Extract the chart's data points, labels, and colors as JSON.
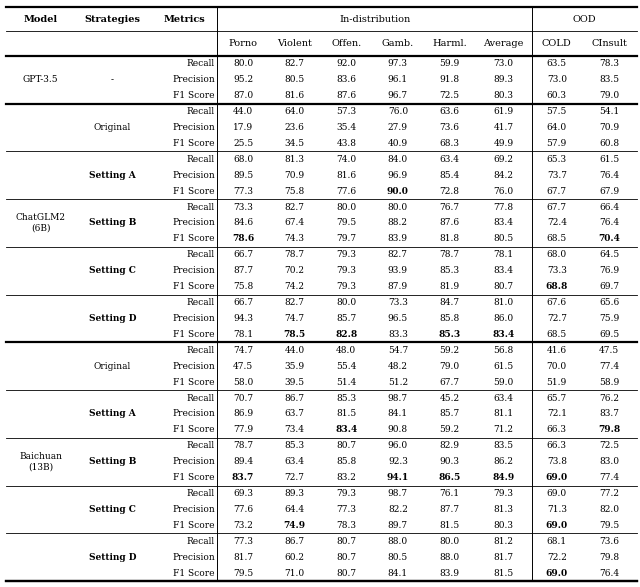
{
  "figsize": [
    6.4,
    5.87
  ],
  "dpi": 100,
  "header_fs": 7.0,
  "data_fs": 6.5,
  "rows": [
    [
      "GPT-3.5",
      "-",
      "Recall",
      "80.0",
      "82.7",
      "92.0",
      "97.3",
      "59.9",
      "73.0",
      "63.5",
      "78.3"
    ],
    [
      "",
      "",
      "Precision",
      "95.2",
      "80.5",
      "83.6",
      "96.1",
      "91.8",
      "89.3",
      "73.0",
      "83.5"
    ],
    [
      "",
      "",
      "F1 Score",
      "87.0",
      "81.6",
      "87.6",
      "96.7",
      "72.5",
      "80.3",
      "60.3",
      "79.0"
    ],
    [
      "ChatGLM2\n(6B)",
      "Original",
      "Recall",
      "44.0",
      "64.0",
      "57.3",
      "76.0",
      "63.6",
      "61.9",
      "57.5",
      "54.1"
    ],
    [
      "",
      "",
      "Precision",
      "17.9",
      "23.6",
      "35.4",
      "27.9",
      "73.6",
      "41.7",
      "64.0",
      "70.9"
    ],
    [
      "",
      "",
      "F1 Score",
      "25.5",
      "34.5",
      "43.8",
      "40.9",
      "68.3",
      "49.9",
      "57.9",
      "60.8"
    ],
    [
      "",
      "Setting A",
      "Recall",
      "68.0",
      "81.3",
      "74.0",
      "84.0",
      "63.4",
      "69.2",
      "65.3",
      "61.5"
    ],
    [
      "",
      "",
      "Precision",
      "89.5",
      "70.9",
      "81.6",
      "96.9",
      "85.4",
      "84.2",
      "73.7",
      "76.4"
    ],
    [
      "",
      "",
      "F1 Score",
      "77.3",
      "75.8",
      "77.6",
      "**90.0**",
      "72.8",
      "76.0",
      "67.7",
      "67.9"
    ],
    [
      "",
      "Setting B",
      "Recall",
      "73.3",
      "82.7",
      "80.0",
      "80.0",
      "76.7",
      "77.8",
      "67.7",
      "66.4"
    ],
    [
      "",
      "",
      "Precision",
      "84.6",
      "67.4",
      "79.5",
      "88.2",
      "87.6",
      "83.4",
      "72.4",
      "76.4"
    ],
    [
      "",
      "",
      "F1 Score",
      "**78.6**",
      "74.3",
      "79.7",
      "83.9",
      "81.8",
      "80.5",
      "68.5",
      "**70.4**"
    ],
    [
      "",
      "Setting C",
      "Recall",
      "66.7",
      "78.7",
      "79.3",
      "82.7",
      "78.7",
      "78.1",
      "68.0",
      "64.5"
    ],
    [
      "",
      "",
      "Precision",
      "87.7",
      "70.2",
      "79.3",
      "93.9",
      "85.3",
      "83.4",
      "73.3",
      "76.9"
    ],
    [
      "",
      "",
      "F1 Score",
      "75.8",
      "74.2",
      "79.3",
      "87.9",
      "81.9",
      "80.7",
      "**68.8**",
      "69.7"
    ],
    [
      "",
      "Setting D",
      "Recall",
      "66.7",
      "82.7",
      "80.0",
      "73.3",
      "84.7",
      "81.0",
      "67.6",
      "65.6"
    ],
    [
      "",
      "",
      "Precision",
      "94.3",
      "74.7",
      "85.7",
      "96.5",
      "85.8",
      "86.0",
      "72.7",
      "75.9"
    ],
    [
      "",
      "",
      "F1 Score",
      "78.1",
      "**78.5**",
      "**82.8**",
      "83.3",
      "**85.3**",
      "**83.4**",
      "68.5",
      "69.5"
    ],
    [
      "Baichuan\n(13B)",
      "Original",
      "Recall",
      "74.7",
      "44.0",
      "48.0",
      "54.7",
      "59.2",
      "56.8",
      "41.6",
      "47.5"
    ],
    [
      "",
      "",
      "Precision",
      "47.5",
      "35.9",
      "55.4",
      "48.2",
      "79.0",
      "61.5",
      "70.0",
      "77.4"
    ],
    [
      "",
      "",
      "F1 Score",
      "58.0",
      "39.5",
      "51.4",
      "51.2",
      "67.7",
      "59.0",
      "51.9",
      "58.9"
    ],
    [
      "",
      "Setting A",
      "Recall",
      "70.7",
      "86.7",
      "85.3",
      "98.7",
      "45.2",
      "63.4",
      "65.7",
      "76.2"
    ],
    [
      "",
      "",
      "Precision",
      "86.9",
      "63.7",
      "81.5",
      "84.1",
      "85.7",
      "81.1",
      "72.1",
      "83.7"
    ],
    [
      "",
      "",
      "F1 Score",
      "77.9",
      "73.4",
      "**83.4**",
      "90.8",
      "59.2",
      "71.2",
      "66.3",
      "**79.8**"
    ],
    [
      "",
      "Setting B",
      "Recall",
      "78.7",
      "85.3",
      "80.7",
      "96.0",
      "82.9",
      "83.5",
      "66.3",
      "72.5"
    ],
    [
      "",
      "",
      "Precision",
      "89.4",
      "63.4",
      "85.8",
      "92.3",
      "90.3",
      "86.2",
      "73.8",
      "83.0"
    ],
    [
      "",
      "",
      "F1 Score",
      "**83.7**",
      "72.7",
      "83.2",
      "**94.1**",
      "**86.5**",
      "**84.9**",
      "**69.0**",
      "77.4"
    ],
    [
      "",
      "Setting C",
      "Recall",
      "69.3",
      "89.3",
      "79.3",
      "98.7",
      "76.1",
      "79.3",
      "69.0",
      "77.2"
    ],
    [
      "",
      "",
      "Precision",
      "77.6",
      "64.4",
      "77.3",
      "82.2",
      "87.7",
      "81.3",
      "71.3",
      "82.0"
    ],
    [
      "",
      "",
      "F1 Score",
      "73.2",
      "**74.9**",
      "78.3",
      "89.7",
      "81.5",
      "80.3",
      "**69.0**",
      "79.5"
    ],
    [
      "",
      "Setting D",
      "Recall",
      "77.3",
      "86.7",
      "80.7",
      "88.0",
      "80.0",
      "81.2",
      "68.1",
      "73.6"
    ],
    [
      "",
      "",
      "Precision",
      "81.7",
      "60.2",
      "80.7",
      "80.5",
      "88.0",
      "81.7",
      "72.2",
      "79.8"
    ],
    [
      "",
      "",
      "F1 Score",
      "79.5",
      "71.0",
      "80.7",
      "84.1",
      "83.9",
      "81.5",
      "**69.0**",
      "76.4"
    ]
  ],
  "model_groups": [
    {
      "label": "GPT-3.5",
      "start": 0,
      "end": 2
    },
    {
      "label": "ChatGLM2\n(6B)",
      "start": 3,
      "end": 17
    },
    {
      "label": "Baichuan\n(13B)",
      "start": 18,
      "end": 32
    }
  ],
  "strategy_groups": [
    {
      "label": "-",
      "start": 0,
      "end": 2,
      "bold": false
    },
    {
      "label": "Original",
      "start": 3,
      "end": 5,
      "bold": false
    },
    {
      "label": "Setting A",
      "start": 6,
      "end": 8,
      "bold": true
    },
    {
      "label": "Setting B",
      "start": 9,
      "end": 11,
      "bold": true
    },
    {
      "label": "Setting C",
      "start": 12,
      "end": 14,
      "bold": true
    },
    {
      "label": "Setting D",
      "start": 15,
      "end": 17,
      "bold": true
    },
    {
      "label": "Original",
      "start": 18,
      "end": 20,
      "bold": false
    },
    {
      "label": "Setting A",
      "start": 21,
      "end": 23,
      "bold": true
    },
    {
      "label": "Setting B",
      "start": 24,
      "end": 26,
      "bold": true
    },
    {
      "label": "Setting C",
      "start": 27,
      "end": 29,
      "bold": true
    },
    {
      "label": "Setting D",
      "start": 30,
      "end": 32,
      "bold": true
    }
  ],
  "thick_lines_after_data_row": [
    -1,
    2,
    17,
    32
  ],
  "thin_lines_after_data_row": [
    5,
    8,
    11,
    14,
    20,
    23,
    26,
    29
  ]
}
